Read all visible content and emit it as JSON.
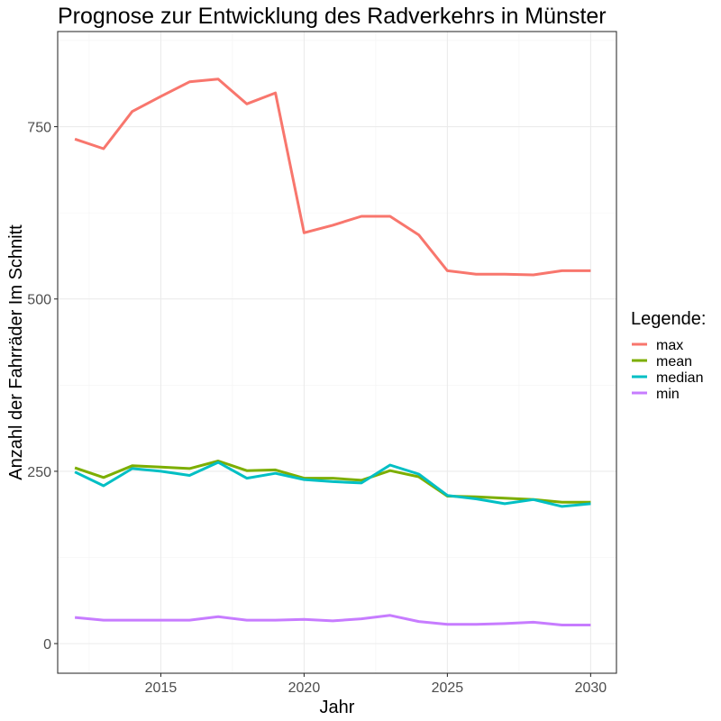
{
  "chart_data": {
    "type": "line",
    "title": "Prognose zur Entwicklung des Radverkehrs in  Münster",
    "xlabel": "Jahr",
    "ylabel": "Anzahl der Fahrräder Im Schnitt",
    "xlim": [
      2011.4,
      2030.9
    ],
    "ylim": [
      -43,
      888
    ],
    "x_ticks": [
      2015,
      2020,
      2025,
      2030
    ],
    "y_ticks": [
      0,
      250,
      500,
      750
    ],
    "grid": true,
    "legend": {
      "title": "Legende:",
      "position": "right"
    },
    "x": [
      2012,
      2013,
      2014,
      2015,
      2016,
      2017,
      2018,
      2019,
      2020,
      2021,
      2022,
      2023,
      2024,
      2025,
      2026,
      2027,
      2028,
      2029,
      2030
    ],
    "series": [
      {
        "name": "max",
        "color": "#F8766D",
        "values": [
          732,
          718,
          772,
          794,
          815,
          819,
          783,
          799,
          596,
          607,
          620,
          620,
          593,
          541,
          536,
          536,
          535,
          541,
          541
        ]
      },
      {
        "name": "mean",
        "color": "#7CAE00",
        "values": [
          255,
          241,
          258,
          256,
          254,
          265,
          251,
          252,
          240,
          240,
          237,
          251,
          242,
          214,
          213,
          211,
          209,
          205,
          205
        ]
      },
      {
        "name": "median",
        "color": "#00BFC4",
        "values": [
          249,
          229,
          254,
          250,
          244,
          263,
          240,
          247,
          238,
          235,
          233,
          259,
          246,
          215,
          210,
          203,
          209,
          199,
          203
        ]
      },
      {
        "name": "min",
        "color": "#C77CFF",
        "values": [
          38,
          34,
          34,
          34,
          34,
          39,
          34,
          34,
          35,
          33,
          36,
          41,
          32,
          28,
          28,
          29,
          31,
          27,
          27
        ]
      }
    ]
  }
}
